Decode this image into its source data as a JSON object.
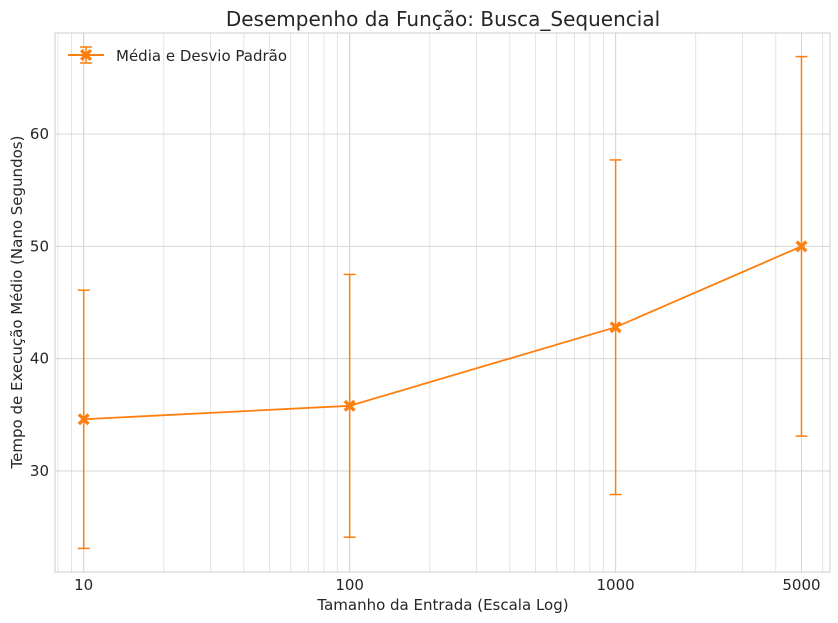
{
  "chart_data": {
    "type": "line",
    "title": "Desempenho da Função: Busca_Sequencial",
    "xlabel": "Tamanho da Entrada (Escala Log)",
    "ylabel": "Tempo de Execução Médio (Nano Segundos)",
    "x_scale": "log",
    "x": [
      10,
      100,
      1000,
      5000
    ],
    "x_tick_labels": [
      "10",
      "100",
      "1000",
      "5000"
    ],
    "xlim": [
      7.8,
      6400
    ],
    "ylim": [
      21,
      69
    ],
    "y_ticks": [
      30,
      40,
      50,
      60
    ],
    "y_tick_labels": [
      "30",
      "40",
      "50",
      "60"
    ],
    "grid": true,
    "legend_position": "top-left",
    "series": [
      {
        "name": "Média e Desvio Padrão",
        "values": [
          34.6,
          35.8,
          42.8,
          50.0
        ],
        "error": [
          11.5,
          11.7,
          14.9,
          16.9
        ],
        "color": "#ff7f0e",
        "marker": "X"
      }
    ]
  }
}
